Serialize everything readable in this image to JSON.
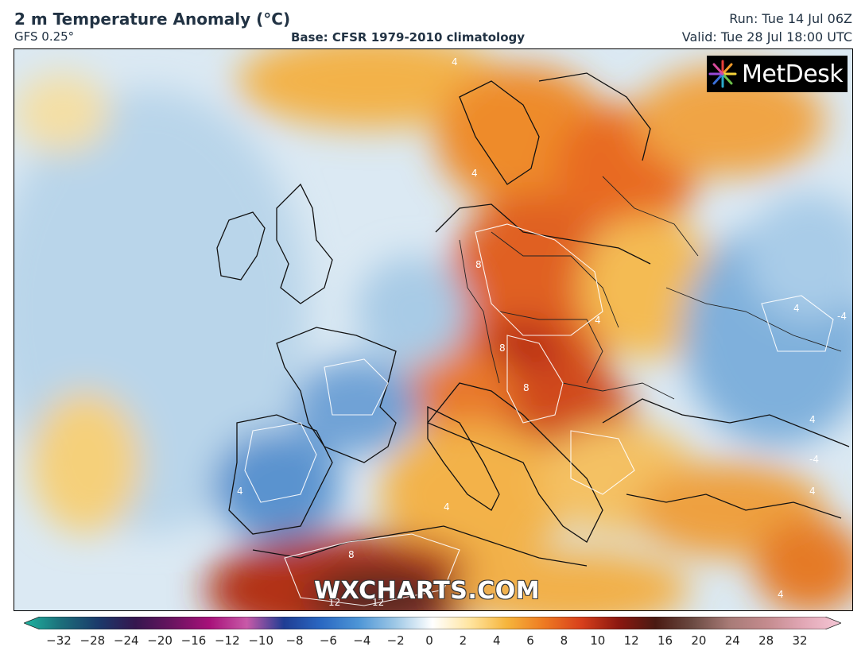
{
  "header": {
    "title": "2 m Temperature Anomaly (°C)",
    "model": "GFS 0.25°",
    "base": "Base: CFSR 1979-2010 climatology",
    "run": "Run: Tue 14 Jul 06Z",
    "valid": "Valid: Tue 28 Jul 18:00 UTC"
  },
  "logo": {
    "text": "MetDesk",
    "icon": "starburst-icon"
  },
  "watermark": "WXCHARTS.COM",
  "colorbar": {
    "ticks": [
      "−32",
      "−28",
      "−24",
      "−20",
      "−16",
      "−12",
      "−10",
      "−8",
      "−6",
      "−4",
      "−2",
      "0",
      "2",
      "4",
      "6",
      "8",
      "10",
      "12",
      "16",
      "20",
      "24",
      "28",
      "32"
    ],
    "stops": [
      "#1fb5a0",
      "#1c6e7a",
      "#1b3a6b",
      "#35164f",
      "#6a1460",
      "#a8117a",
      "#c85aa8",
      "#1f3d94",
      "#2a68c2",
      "#4d95d6",
      "#9ec8e6",
      "#ffffff",
      "#ffe5a0",
      "#f6b53c",
      "#ee7a22",
      "#d8401c",
      "#8c1810",
      "#4a1a12",
      "#6b4a42",
      "#a87b77",
      "#c48b8e",
      "#e2a8b6",
      "#f5c7d6"
    ]
  },
  "contour_labels": [
    "8",
    "8",
    "8",
    "8",
    "4",
    "4",
    "4",
    "4",
    "4",
    "4",
    "-4",
    "-4",
    "4",
    "4",
    "4",
    "12",
    "12"
  ]
}
